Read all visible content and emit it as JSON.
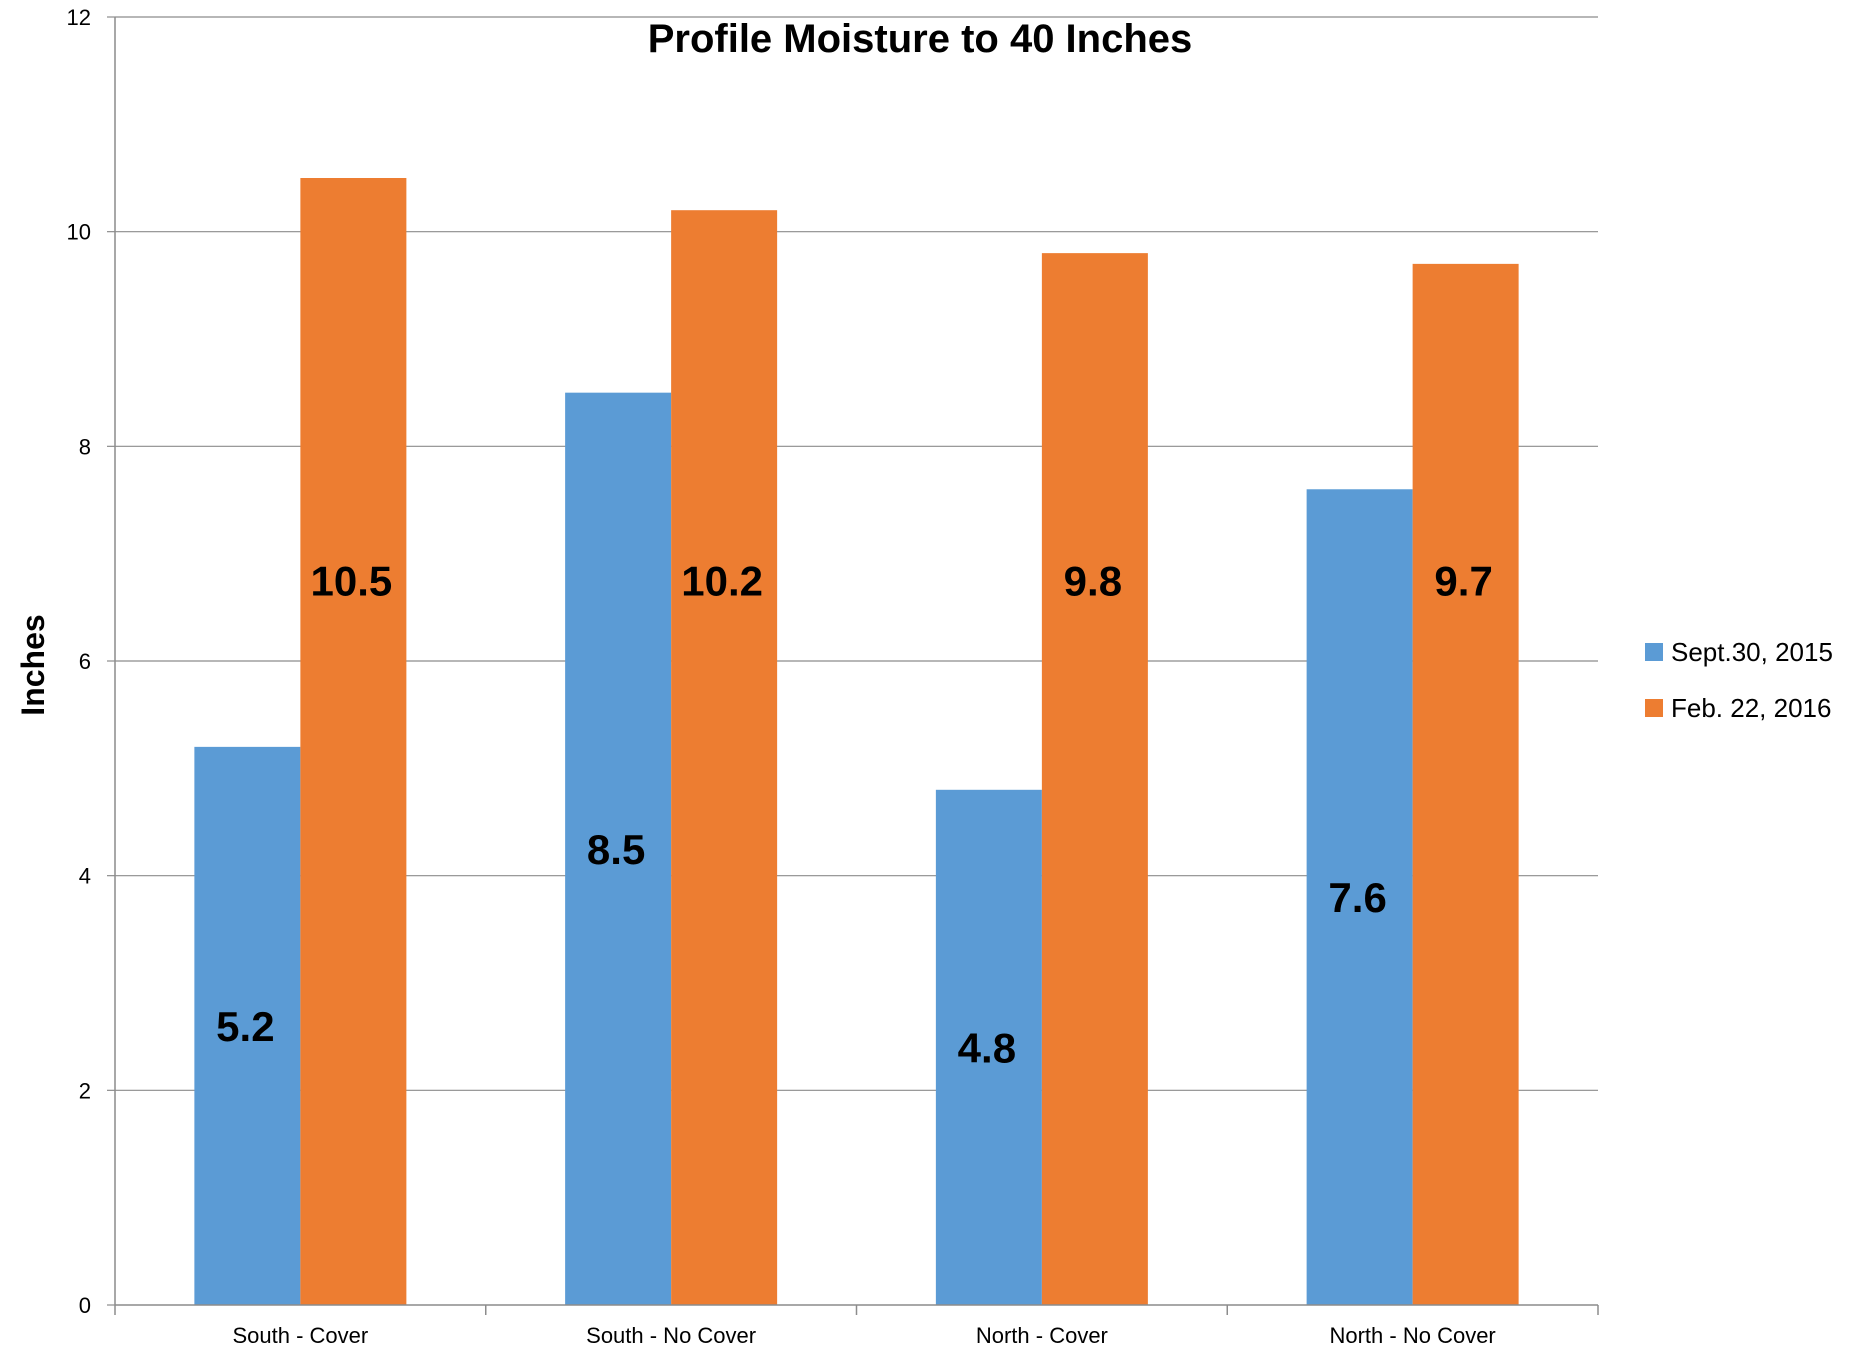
{
  "chart_data": {
    "type": "bar",
    "title": "Profile Moisture to 40 Inches",
    "xlabel": "",
    "ylabel": "Inches",
    "categories": [
      "South - Cover",
      "South - No Cover",
      "North - Cover",
      "North - No Cover"
    ],
    "series": [
      {
        "name": "Sept.30, 2015",
        "values": [
          5.2,
          8.5,
          4.8,
          7.6
        ],
        "labels": [
          "5.2",
          "8.5",
          "4.8",
          "7.6"
        ],
        "color": "#5B9BD5"
      },
      {
        "name": "Feb. 22, 2016",
        "values": [
          10.5,
          10.2,
          9.8,
          9.7
        ],
        "labels": [
          "10.5",
          "10.2",
          "9.8",
          "9.7"
        ],
        "color": "#ED7D31"
      }
    ],
    "ylim": [
      0,
      12
    ],
    "yticks": [
      "0",
      "2",
      "4",
      "6",
      "8",
      "10",
      "12"
    ],
    "grid": true,
    "legend": "right"
  }
}
